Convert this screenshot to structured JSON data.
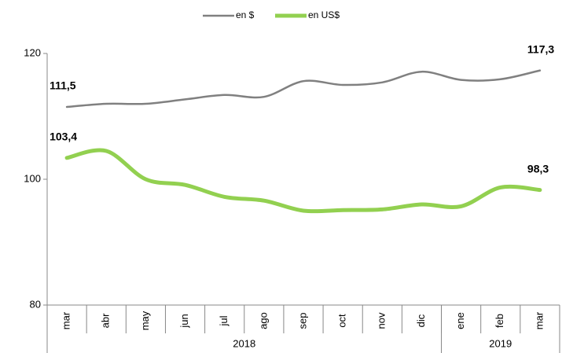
{
  "chart_data": {
    "type": "line",
    "categories": [
      "mar",
      "abr",
      "may",
      "jun",
      "jul",
      "ago",
      "sep",
      "oct",
      "nov",
      "dic",
      "ene",
      "feb",
      "mar"
    ],
    "groups": [
      {
        "label": "2018",
        "span": 10
      },
      {
        "label": "2019",
        "span": 3
      }
    ],
    "series": [
      {
        "name": "en $",
        "color": "#808080",
        "width": 2.5,
        "values": [
          111.5,
          112.0,
          112.0,
          112.7,
          113.4,
          113.1,
          115.6,
          115.0,
          115.4,
          117.1,
          115.8,
          115.9,
          117.3
        ],
        "value_labels": {
          "0": "111,5",
          "12": "117,3"
        }
      },
      {
        "name": "en US$",
        "color": "#92d050",
        "width": 5,
        "values": [
          103.4,
          104.5,
          100.0,
          99.1,
          97.2,
          96.6,
          95.0,
          95.1,
          95.2,
          96.0,
          95.7,
          98.7,
          98.3
        ],
        "value_labels": {
          "0": "103,4",
          "12": "98,3"
        }
      }
    ],
    "ylim": [
      80,
      120
    ],
    "yticks": [
      80,
      100,
      120
    ],
    "grid": false,
    "legend": "top"
  }
}
